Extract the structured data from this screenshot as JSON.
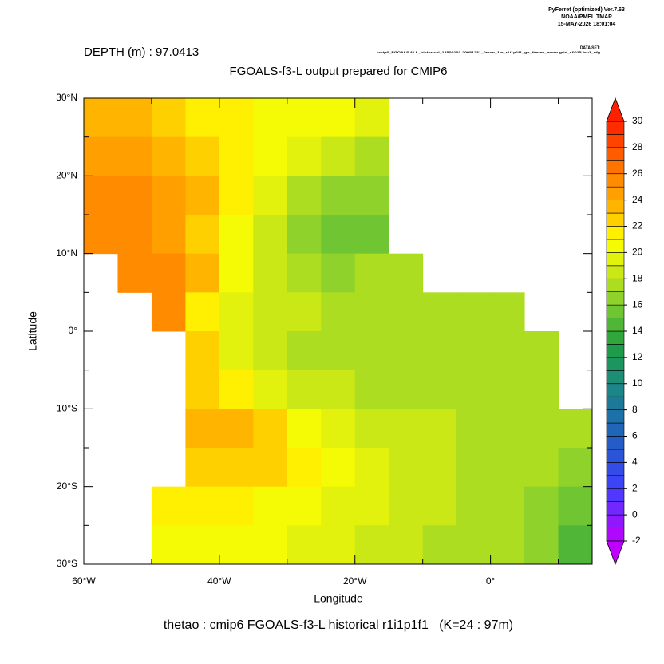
{
  "chart_data": {
    "type": "heatmap",
    "header": [
      "PyFerret (optimized) Ver.7.63",
      "NOAA/PMEL TMAP",
      "15-MAY-2026 18:01:04"
    ],
    "dataset_label": "DATA SET:",
    "dataset": "cmip6_FGOALS-f3-L_historical_18500101-20051231_0mon_1m_r1i1p1f1_gn_thetao_mean.grid_s0025-lev1_nfg",
    "depth_label": "DEPTH (m) : 97.0413",
    "title": "FGOALS-f3-L output prepared for CMIP6",
    "xlabel": "Longitude",
    "ylabel": "Latitude",
    "footer": "thetao : cmip6 FGOALS-f3-L historical r1i1p1f1   (K=24 : 97m)",
    "xlim": [
      -60,
      15
    ],
    "ylim": [
      -30,
      30
    ],
    "xticks": [
      {
        "value": -60,
        "label": "60°W"
      },
      {
        "value": -40,
        "label": "40°W"
      },
      {
        "value": -20,
        "label": "20°W"
      },
      {
        "value": 0,
        "label": "0°"
      }
    ],
    "yticks": [
      {
        "value": 30,
        "label": "30°N"
      },
      {
        "value": 20,
        "label": "20°N"
      },
      {
        "value": 10,
        "label": "10°N"
      },
      {
        "value": 0,
        "label": "0°"
      },
      {
        "value": -10,
        "label": "10°S"
      },
      {
        "value": -20,
        "label": "20°S"
      },
      {
        "value": -30,
        "label": "30°S"
      }
    ],
    "clim": [
      -2,
      30
    ],
    "cticks": [
      30,
      28,
      26,
      24,
      22,
      20,
      18,
      16,
      14,
      12,
      10,
      8,
      6,
      4,
      2,
      0,
      -2
    ],
    "x": [
      -57.5,
      -52.5,
      -47.5,
      -42.5,
      -37.5,
      -32.5,
      -27.5,
      -22.5,
      -17.5,
      -12.5,
      -7.5,
      -2.5,
      2.5,
      7.5,
      12.5
    ],
    "y": [
      27.5,
      22.5,
      17.5,
      12.5,
      7.5,
      2.5,
      -2.5,
      -7.5,
      -12.5,
      -17.5,
      -22.5,
      -27.5
    ],
    "values": [
      [
        23,
        23,
        22,
        21,
        21,
        20,
        20,
        20,
        19,
        null,
        null,
        null,
        null,
        null,
        null
      ],
      [
        24,
        24,
        23,
        22,
        21,
        20,
        19,
        18,
        17,
        null,
        null,
        null,
        null,
        null,
        null
      ],
      [
        25,
        25,
        24,
        23,
        21,
        19,
        17,
        16,
        16,
        null,
        null,
        null,
        null,
        null,
        null
      ],
      [
        25,
        25,
        24,
        22,
        20,
        18,
        16,
        15,
        15,
        null,
        null,
        null,
        null,
        null,
        null
      ],
      [
        null,
        25,
        25,
        23,
        20,
        18,
        17,
        16,
        17,
        17,
        null,
        null,
        null,
        null,
        null
      ],
      [
        null,
        null,
        25,
        21,
        19,
        18,
        18,
        17,
        17,
        17,
        17,
        17,
        17,
        null,
        null
      ],
      [
        null,
        null,
        null,
        22,
        19,
        18,
        17,
        17,
        17,
        17,
        17,
        17,
        17,
        17,
        null
      ],
      [
        null,
        null,
        null,
        22,
        21,
        19,
        18,
        18,
        17,
        17,
        17,
        17,
        17,
        17,
        null
      ],
      [
        null,
        null,
        null,
        23,
        23,
        22,
        20,
        19,
        18,
        18,
        18,
        17,
        17,
        17,
        17
      ],
      [
        null,
        null,
        null,
        22,
        22,
        22,
        21,
        20,
        19,
        18,
        18,
        17,
        17,
        17,
        16
      ],
      [
        null,
        null,
        21,
        21,
        21,
        20,
        20,
        19,
        19,
        18,
        18,
        17,
        17,
        16,
        15
      ],
      [
        null,
        null,
        20,
        20,
        20,
        20,
        19,
        19,
        18,
        18,
        17,
        17,
        17,
        16,
        14
      ]
    ]
  }
}
